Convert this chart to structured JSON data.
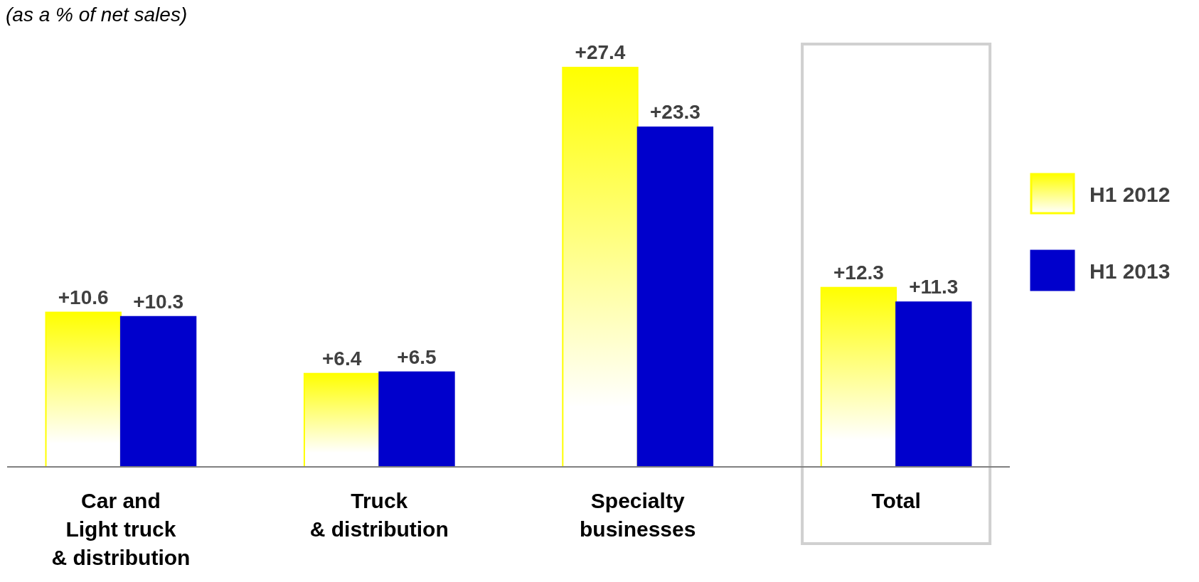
{
  "chart_data": {
    "type": "bar",
    "title": "(as a % of net sales)",
    "categories": [
      "Car and\nLight truck\n& distribution",
      "Truck\n& distribution",
      "Specialty\nbusinesses",
      "Total"
    ],
    "series": [
      {
        "name": "H1 2012",
        "color": "#ffff00",
        "values": [
          10.6,
          6.4,
          27.4,
          12.3
        ],
        "value_labels": [
          "+10.6",
          "+6.4",
          "+27.4",
          "+12.3"
        ]
      },
      {
        "name": "H1 2013",
        "color": "#0000cc",
        "values": [
          10.3,
          6.5,
          23.3,
          11.3
        ],
        "value_labels": [
          "+10.3",
          "+6.5",
          "+23.3",
          "+11.3"
        ]
      }
    ],
    "legend": "right"
  }
}
